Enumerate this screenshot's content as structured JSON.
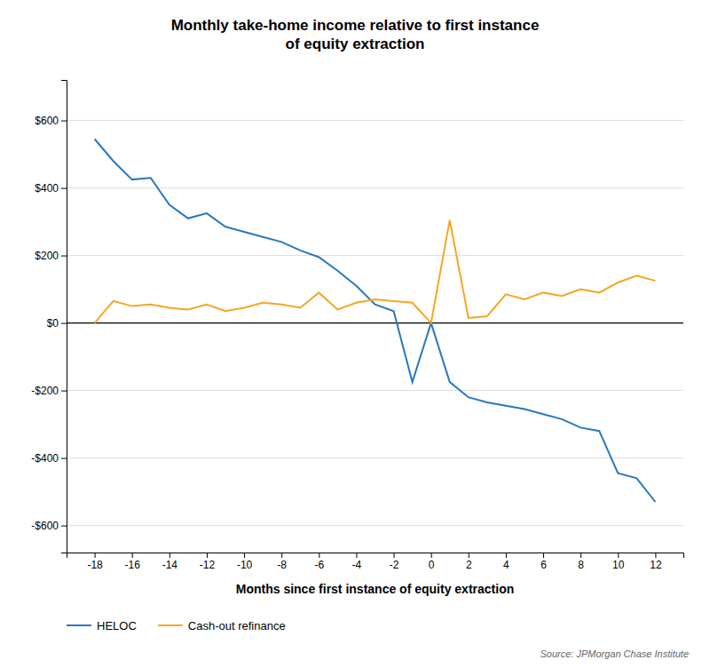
{
  "chart_data": {
    "type": "line",
    "title": "Monthly take-home income relative to first instance\nof equity extraction",
    "x_label": "Months since first instance of equity extraction",
    "annotations": [
      "Source: JPMorgan Chase Institute"
    ],
    "x": [
      -18,
      -17,
      -16,
      -15,
      -14,
      -13,
      -12,
      -11,
      -10,
      -9,
      -8,
      -7,
      -6,
      -5,
      -4,
      -3,
      -2,
      -1,
      0,
      1,
      2,
      3,
      4,
      5,
      6,
      7,
      8,
      9,
      10,
      11,
      12
    ],
    "series": [
      {
        "name": "HELOC",
        "color": "#2878bf",
        "values": [
          545,
          480,
          425,
          430,
          350,
          310,
          325,
          285,
          270,
          255,
          240,
          215,
          195,
          155,
          110,
          55,
          35,
          -175,
          0,
          -175,
          -220,
          -235,
          -245,
          -255,
          -270,
          -285,
          -310,
          -320,
          -445,
          -460,
          -530
        ]
      },
      {
        "name": "Cash-out refinance",
        "color": "#f5a623",
        "values": [
          0,
          65,
          50,
          55,
          45,
          40,
          55,
          35,
          45,
          60,
          55,
          45,
          90,
          40,
          60,
          70,
          65,
          60,
          0,
          305,
          15,
          20,
          85,
          70,
          90,
          80,
          100,
          90,
          120,
          140,
          125
        ]
      }
    ],
    "xlim": [
      -19.5,
      13.5
    ],
    "ylim": [
      -680,
      720
    ],
    "xticks": [
      -18,
      -16,
      -14,
      -12,
      -10,
      -8,
      -6,
      -4,
      -2,
      0,
      2,
      4,
      6,
      8,
      10,
      12
    ],
    "yticks": [
      {
        "value": -600,
        "label": "-$600"
      },
      {
        "value": -400,
        "label": "-$400"
      },
      {
        "value": -200,
        "label": "-$200"
      },
      {
        "value": 0,
        "label": "$0"
      },
      {
        "value": 200,
        "label": "$200"
      },
      {
        "value": 400,
        "label": "$400"
      },
      {
        "value": 600,
        "label": "$600"
      }
    ],
    "grid": true,
    "legend": "lower left"
  }
}
